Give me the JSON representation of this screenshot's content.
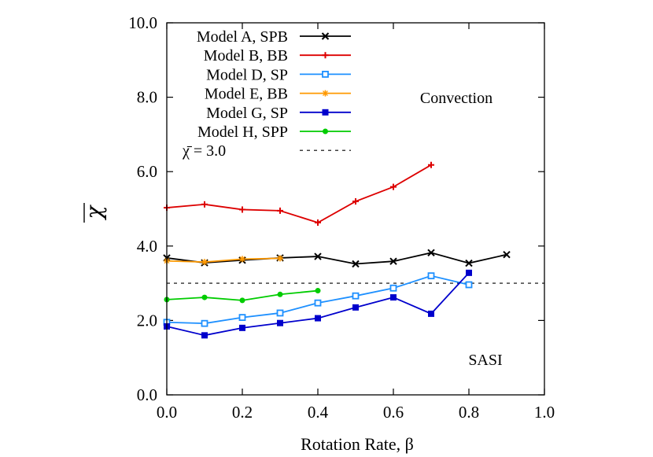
{
  "chart_data": {
    "type": "line",
    "xlabel": "Rotation Rate, β",
    "ylabel": "χ",
    "xlim": [
      0.0,
      1.0
    ],
    "ylim": [
      0.0,
      10.0
    ],
    "xticks": [
      0.0,
      0.2,
      0.4,
      0.6,
      0.8,
      1.0
    ],
    "yticks": [
      0.0,
      2.0,
      4.0,
      6.0,
      8.0,
      10.0
    ],
    "xtick_labels": [
      "0.0",
      "0.2",
      "0.4",
      "0.6",
      "0.8",
      "1.0"
    ],
    "ytick_labels": [
      "0.0",
      "2.0",
      "4.0",
      "6.0",
      "8.0",
      "10.0"
    ],
    "grid": false,
    "legend_position": "top-left",
    "series": [
      {
        "name": "Model A, SPB",
        "color": "#000000",
        "marker": "x",
        "x": [
          0.0,
          0.1,
          0.2,
          0.3,
          0.4,
          0.5,
          0.6,
          0.7,
          0.8,
          0.9
        ],
        "y": [
          3.68,
          3.55,
          3.62,
          3.68,
          3.72,
          3.52,
          3.59,
          3.82,
          3.54,
          3.77
        ]
      },
      {
        "name": "Model B, BB",
        "color": "#dd0000",
        "marker": "plus",
        "x": [
          0.0,
          0.1,
          0.2,
          0.3,
          0.4,
          0.5,
          0.6,
          0.7
        ],
        "y": [
          5.03,
          5.12,
          4.98,
          4.95,
          4.63,
          5.2,
          5.59,
          6.18
        ]
      },
      {
        "name": "Model D, SP",
        "color": "#1e90ff",
        "marker": "open-square",
        "x": [
          0.0,
          0.1,
          0.2,
          0.3,
          0.4,
          0.5,
          0.6,
          0.7,
          0.8
        ],
        "y": [
          1.95,
          1.92,
          2.08,
          2.2,
          2.47,
          2.66,
          2.87,
          3.2,
          2.96
        ]
      },
      {
        "name": "Model E, BB",
        "color": "#ff9900",
        "marker": "star",
        "x": [
          0.0,
          0.1,
          0.2,
          0.3
        ],
        "y": [
          3.6,
          3.57,
          3.65,
          3.67
        ]
      },
      {
        "name": "Model G, SP",
        "color": "#0000cc",
        "marker": "filled-square",
        "x": [
          0.0,
          0.1,
          0.2,
          0.3,
          0.4,
          0.5,
          0.6,
          0.7,
          0.8
        ],
        "y": [
          1.84,
          1.6,
          1.8,
          1.93,
          2.06,
          2.35,
          2.62,
          2.18,
          3.28
        ]
      },
      {
        "name": "Model H, SPP",
        "color": "#00cc00",
        "marker": "filled-circle",
        "x": [
          0.0,
          0.1,
          0.2,
          0.3,
          0.4
        ],
        "y": [
          2.56,
          2.62,
          2.54,
          2.7,
          2.8
        ]
      }
    ],
    "reference_line": {
      "label": "χ̄ = 3.0",
      "y": 3.0,
      "style": "dashed",
      "color": "#000000"
    },
    "annotations": [
      {
        "text": "Convection",
        "x": 0.8,
        "y": 7.9
      },
      {
        "text": "SASI",
        "x": 0.85,
        "y": 0.95
      }
    ]
  }
}
